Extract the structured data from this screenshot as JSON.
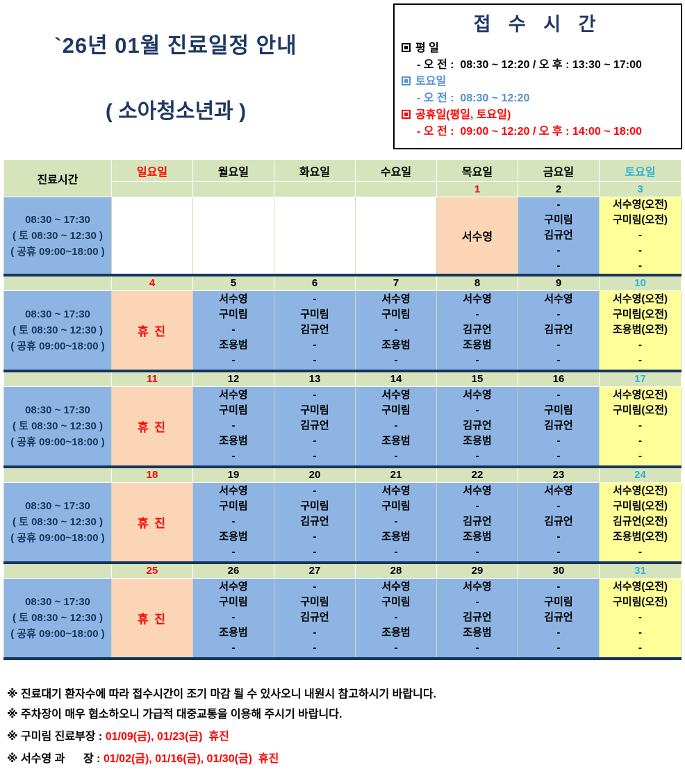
{
  "title": {
    "line1": "`26년 01월 진료일정 안내",
    "line2": "( 소아청소년과 )"
  },
  "reception": {
    "title": "접 수 시 간",
    "sections": [
      {
        "label": "평 일",
        "color_key": "black",
        "lines": [
          "- 오 전 :  08:30 ~ 12:20 / 오 후 : 13:30 ~ 17:00"
        ]
      },
      {
        "label": "토요일",
        "color_key": "steel_blue",
        "lines": [
          "- 오 전 :  08:30 ~ 12:20"
        ]
      },
      {
        "label": "공휴일(평일, 토요일)",
        "color_key": "red",
        "lines": [
          "- 오 전 :  09:00 ~ 12:20 / 오 후 : 14:00 ~ 18:00"
        ]
      }
    ]
  },
  "colors": {
    "black": "#000000",
    "red": "#ff0000",
    "cyan": "#31b0d5",
    "steel_blue": "#558ed5",
    "navy": "#17365d",
    "green": "#d6e4bc",
    "blue": "#8db4e2",
    "orange": "#fbd5b5",
    "yellow": "#ffff99"
  },
  "table": {
    "time_header": "진료시간",
    "day_headers": [
      {
        "label": "일요일",
        "color_key": "red"
      },
      {
        "label": "월요일",
        "color_key": "black"
      },
      {
        "label": "화요일",
        "color_key": "black"
      },
      {
        "label": "수요일",
        "color_key": "black"
      },
      {
        "label": "목요일",
        "color_key": "black"
      },
      {
        "label": "금요일",
        "color_key": "black"
      },
      {
        "label": "토요일",
        "color_key": "cyan"
      }
    ],
    "time_cell": [
      "08:30 ~ 17:30",
      "( 토 08:30 ~ 12:30 )",
      "( 공휴 09:00~18:00 )"
    ],
    "weeks": [
      {
        "dates": [
          "",
          "",
          "",
          "",
          "1",
          "2",
          "3"
        ],
        "date_colors": [
          "black",
          "black",
          "black",
          "black",
          "red",
          "black",
          "cyan"
        ],
        "cells": [
          {
            "bg": "white",
            "lines": []
          },
          {
            "bg": "white",
            "lines": []
          },
          {
            "bg": "white",
            "lines": []
          },
          {
            "bg": "white",
            "lines": []
          },
          {
            "bg": "orange",
            "center": "서수영",
            "holiday": false
          },
          {
            "bg": "blue",
            "lines": [
              "-",
              "구미림",
              "김규언",
              "-",
              "-"
            ]
          },
          {
            "bg": "yellow",
            "lines": [
              "서수영(오전)",
              "구미림(오전)",
              "-",
              "-",
              "-"
            ]
          }
        ]
      },
      {
        "dates": [
          "4",
          "5",
          "6",
          "7",
          "8",
          "9",
          "10"
        ],
        "date_colors": [
          "red",
          "black",
          "black",
          "black",
          "black",
          "black",
          "cyan"
        ],
        "cells": [
          {
            "bg": "orange",
            "center": "휴 진",
            "holiday": true
          },
          {
            "bg": "blue",
            "lines": [
              "서수영",
              "구미림",
              "-",
              "조용범",
              "-"
            ]
          },
          {
            "bg": "blue",
            "lines": [
              "-",
              "구미림",
              "김규언",
              "-",
              "-"
            ]
          },
          {
            "bg": "blue",
            "lines": [
              "서수영",
              "구미림",
              "-",
              "조용범",
              "-"
            ]
          },
          {
            "bg": "blue",
            "lines": [
              "서수영",
              "-",
              "김규언",
              "조용범",
              "-"
            ]
          },
          {
            "bg": "blue",
            "lines": [
              "서수영",
              "-",
              "김규언",
              "-",
              "-"
            ]
          },
          {
            "bg": "yellow",
            "lines": [
              "서수영(오전)",
              "구미림(오전)",
              "조용범(오전)",
              "-",
              "-"
            ]
          }
        ]
      },
      {
        "dates": [
          "11",
          "12",
          "13",
          "14",
          "15",
          "16",
          "17"
        ],
        "date_colors": [
          "red",
          "black",
          "black",
          "black",
          "black",
          "black",
          "cyan"
        ],
        "cells": [
          {
            "bg": "orange",
            "center": "휴 진",
            "holiday": true
          },
          {
            "bg": "blue",
            "lines": [
              "서수영",
              "구미림",
              "-",
              "조용범",
              "-"
            ]
          },
          {
            "bg": "blue",
            "lines": [
              "-",
              "구미림",
              "김규언",
              "-",
              "-"
            ]
          },
          {
            "bg": "blue",
            "lines": [
              "서수영",
              "구미림",
              "-",
              "조용범",
              "-"
            ]
          },
          {
            "bg": "blue",
            "lines": [
              "서수영",
              "-",
              "김규언",
              "조용범",
              "-"
            ]
          },
          {
            "bg": "blue",
            "lines": [
              "-",
              "구미림",
              "김규언",
              "-",
              "-"
            ]
          },
          {
            "bg": "yellow",
            "lines": [
              "서수영(오전)",
              "구미림(오전)",
              "-",
              "-",
              "-"
            ]
          }
        ]
      },
      {
        "dates": [
          "18",
          "19",
          "20",
          "21",
          "22",
          "23",
          "24"
        ],
        "date_colors": [
          "red",
          "black",
          "black",
          "black",
          "black",
          "black",
          "cyan"
        ],
        "cells": [
          {
            "bg": "orange",
            "center": "휴 진",
            "holiday": true
          },
          {
            "bg": "blue",
            "lines": [
              "서수영",
              "구미림",
              "-",
              "조용범",
              "-"
            ]
          },
          {
            "bg": "blue",
            "lines": [
              "-",
              "구미림",
              "김규언",
              "-",
              "-"
            ]
          },
          {
            "bg": "blue",
            "lines": [
              "서수영",
              "구미림",
              "-",
              "조용범",
              "-"
            ]
          },
          {
            "bg": "blue",
            "lines": [
              "서수영",
              "-",
              "김규언",
              "조용범",
              "-"
            ]
          },
          {
            "bg": "blue",
            "lines": [
              "서수영",
              "-",
              "김규언",
              "-",
              "-"
            ]
          },
          {
            "bg": "yellow",
            "lines": [
              "서수영(오전)",
              "구미림(오전)",
              "김규언(오전)",
              "조용범(오전)",
              "-"
            ]
          }
        ]
      },
      {
        "dates": [
          "25",
          "26",
          "27",
          "28",
          "29",
          "30",
          "31"
        ],
        "date_colors": [
          "red",
          "black",
          "black",
          "black",
          "black",
          "black",
          "cyan"
        ],
        "cells": [
          {
            "bg": "orange",
            "center": "휴 진",
            "holiday": true
          },
          {
            "bg": "blue",
            "lines": [
              "서수영",
              "구미림",
              "-",
              "조용범",
              "-"
            ]
          },
          {
            "bg": "blue",
            "lines": [
              "-",
              "구미림",
              "김규언",
              "-",
              "-"
            ]
          },
          {
            "bg": "blue",
            "lines": [
              "서수영",
              "구미림",
              "-",
              "조용범",
              "-"
            ]
          },
          {
            "bg": "blue",
            "lines": [
              "서수영",
              "-",
              "김규언",
              "조용범",
              "-"
            ]
          },
          {
            "bg": "blue",
            "lines": [
              "-",
              "구미림",
              "김규언",
              "-",
              "-"
            ]
          },
          {
            "bg": "yellow",
            "lines": [
              "서수영(오전)",
              "구미림(오전)",
              "-",
              "-",
              "-"
            ]
          }
        ]
      }
    ]
  },
  "notes": [
    {
      "gap": "s",
      "parts": [
        {
          "t": "※ 진료대기 환자수에 따라 접수시간이 조기 마감 될 수 있사오니 내원시 참고하시기 바랍니다.",
          "red": false
        }
      ]
    },
    {
      "gap": "m",
      "parts": [
        {
          "t": "※ 주차장이 매우 협소하오니 가급적 대중교통을 이용해 주시기 바랍니다.",
          "red": false
        }
      ]
    },
    {
      "gap": "m",
      "parts": [
        {
          "t": "※ 구미림 진료부장 : ",
          "red": false
        },
        {
          "t": "01/09(금), 01/23(금)  휴진",
          "red": true
        }
      ]
    },
    {
      "gap": "s",
      "parts": [
        {
          "t": "※ 서수영 과      장 : ",
          "red": false
        },
        {
          "t": "01/02(금), 01/16(금), 01/30(금)  휴진",
          "red": true
        }
      ]
    }
  ]
}
